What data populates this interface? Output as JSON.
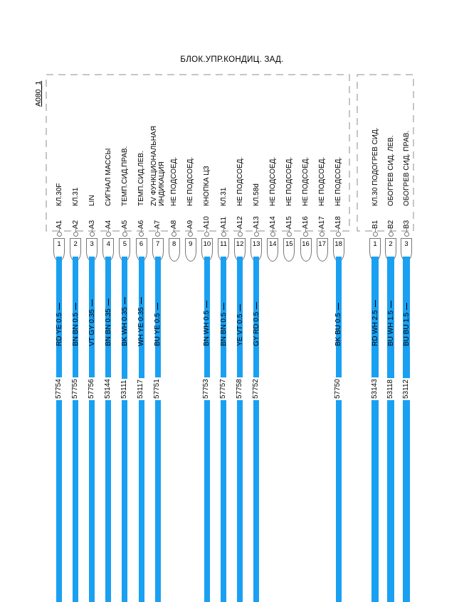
{
  "header": {
    "title": "БЛОК.УПР.КОНДИЦ. ЗАД.",
    "component_code": "A080_1"
  },
  "colors": {
    "wire_blue": "#1AA0F2",
    "line_gray": "#7d7d7d"
  },
  "connector_a": {
    "pins": [
      {
        "name": "A1",
        "number": "1",
        "function_lines": [
          "КЛ.30F"
        ],
        "wire": {
          "label": "RD YE 0.5",
          "number": "57754"
        }
      },
      {
        "name": "A2",
        "number": "2",
        "function_lines": [
          "КЛ.31"
        ],
        "wire": {
          "label": "BN BN 0.5",
          "number": "57755"
        }
      },
      {
        "name": "A3",
        "number": "3",
        "function_lines": [
          "LIN"
        ],
        "wire": {
          "label": "VT GY 0.35",
          "number": "57756"
        }
      },
      {
        "name": "A4",
        "number": "4",
        "function_lines": [
          "СИГНАЛ МАССЫ"
        ],
        "wire": {
          "label": "BN BN 0.35",
          "number": "53144"
        }
      },
      {
        "name": "A5",
        "number": "5",
        "function_lines": [
          "ТЕМП.СИД.ПРАВ."
        ],
        "wire": {
          "label": "BK WH 0.35",
          "number": "53111"
        }
      },
      {
        "name": "A6",
        "number": "6",
        "function_lines": [
          "ТЕМП.СИД.ЛЕВ."
        ],
        "wire": {
          "label": "WH YE 0.35",
          "number": "53117"
        }
      },
      {
        "name": "A7",
        "number": "7",
        "function_lines": [
          "ZV ФУНКЦИОНАЛЬНАЯ",
          "ИНДИКАЦИЯ"
        ],
        "wire": {
          "label": "BU YE 0.5",
          "number": "57751"
        }
      },
      {
        "name": "A8",
        "number": "8",
        "function_lines": [
          "НЕ ПОДСОЕД."
        ],
        "wire": null
      },
      {
        "name": "A9",
        "number": "9",
        "function_lines": [
          "НЕ ПОДСОЕД."
        ],
        "wire": null
      },
      {
        "name": "A10",
        "number": "10",
        "function_lines": [
          "КНОПКА ЦЗ"
        ],
        "wire": {
          "label": "BN WH 0.5",
          "number": "57753"
        }
      },
      {
        "name": "A11",
        "number": "11",
        "function_lines": [
          "КЛ.31"
        ],
        "wire": {
          "label": "BN BN 0.5",
          "number": "57757"
        }
      },
      {
        "name": "A12",
        "number": "12",
        "function_lines": [
          "НЕ ПОДСОЕД."
        ],
        "wire": {
          "label": "YE VT 0.5",
          "number": "57758"
        }
      },
      {
        "name": "A13",
        "number": "13",
        "function_lines": [
          "КЛ.58d"
        ],
        "wire": {
          "label": "GY RD 0.5",
          "number": "57752"
        }
      },
      {
        "name": "A14",
        "number": "14",
        "function_lines": [
          "НЕ ПОДСОЕД."
        ],
        "wire": null
      },
      {
        "name": "A15",
        "number": "15",
        "function_lines": [
          "НЕ ПОДСОЕД."
        ],
        "wire": null
      },
      {
        "name": "A16",
        "number": "16",
        "function_lines": [
          "НЕ ПОДСОЕД."
        ],
        "wire": null
      },
      {
        "name": "A17",
        "number": "17",
        "function_lines": [
          "НЕ ПОДСОЕД."
        ],
        "wire": null
      },
      {
        "name": "A18",
        "number": "18",
        "function_lines": [
          "НЕ ПОДСОЕД."
        ],
        "wire": {
          "label": "BK BU 0.5",
          "number": "57750"
        }
      }
    ]
  },
  "connector_b": {
    "pins": [
      {
        "name": "B1",
        "number": "1",
        "function_lines": [
          "КЛ.30 ПОДОГРЕВ СИД."
        ],
        "wire": {
          "label": "RD WH 2.5",
          "number": "53143"
        }
      },
      {
        "name": "B2",
        "number": "2",
        "function_lines": [
          "ОБОГРЕВ СИД. ЛЕВ."
        ],
        "wire": {
          "label": "BU WH 1.5",
          "number": "53118"
        }
      },
      {
        "name": "B3",
        "number": "3",
        "function_lines": [
          "ОБОГРЕВ СИД. ПРАВ."
        ],
        "wire": {
          "label": "BU BU 1.5",
          "number": "53112"
        }
      }
    ]
  }
}
